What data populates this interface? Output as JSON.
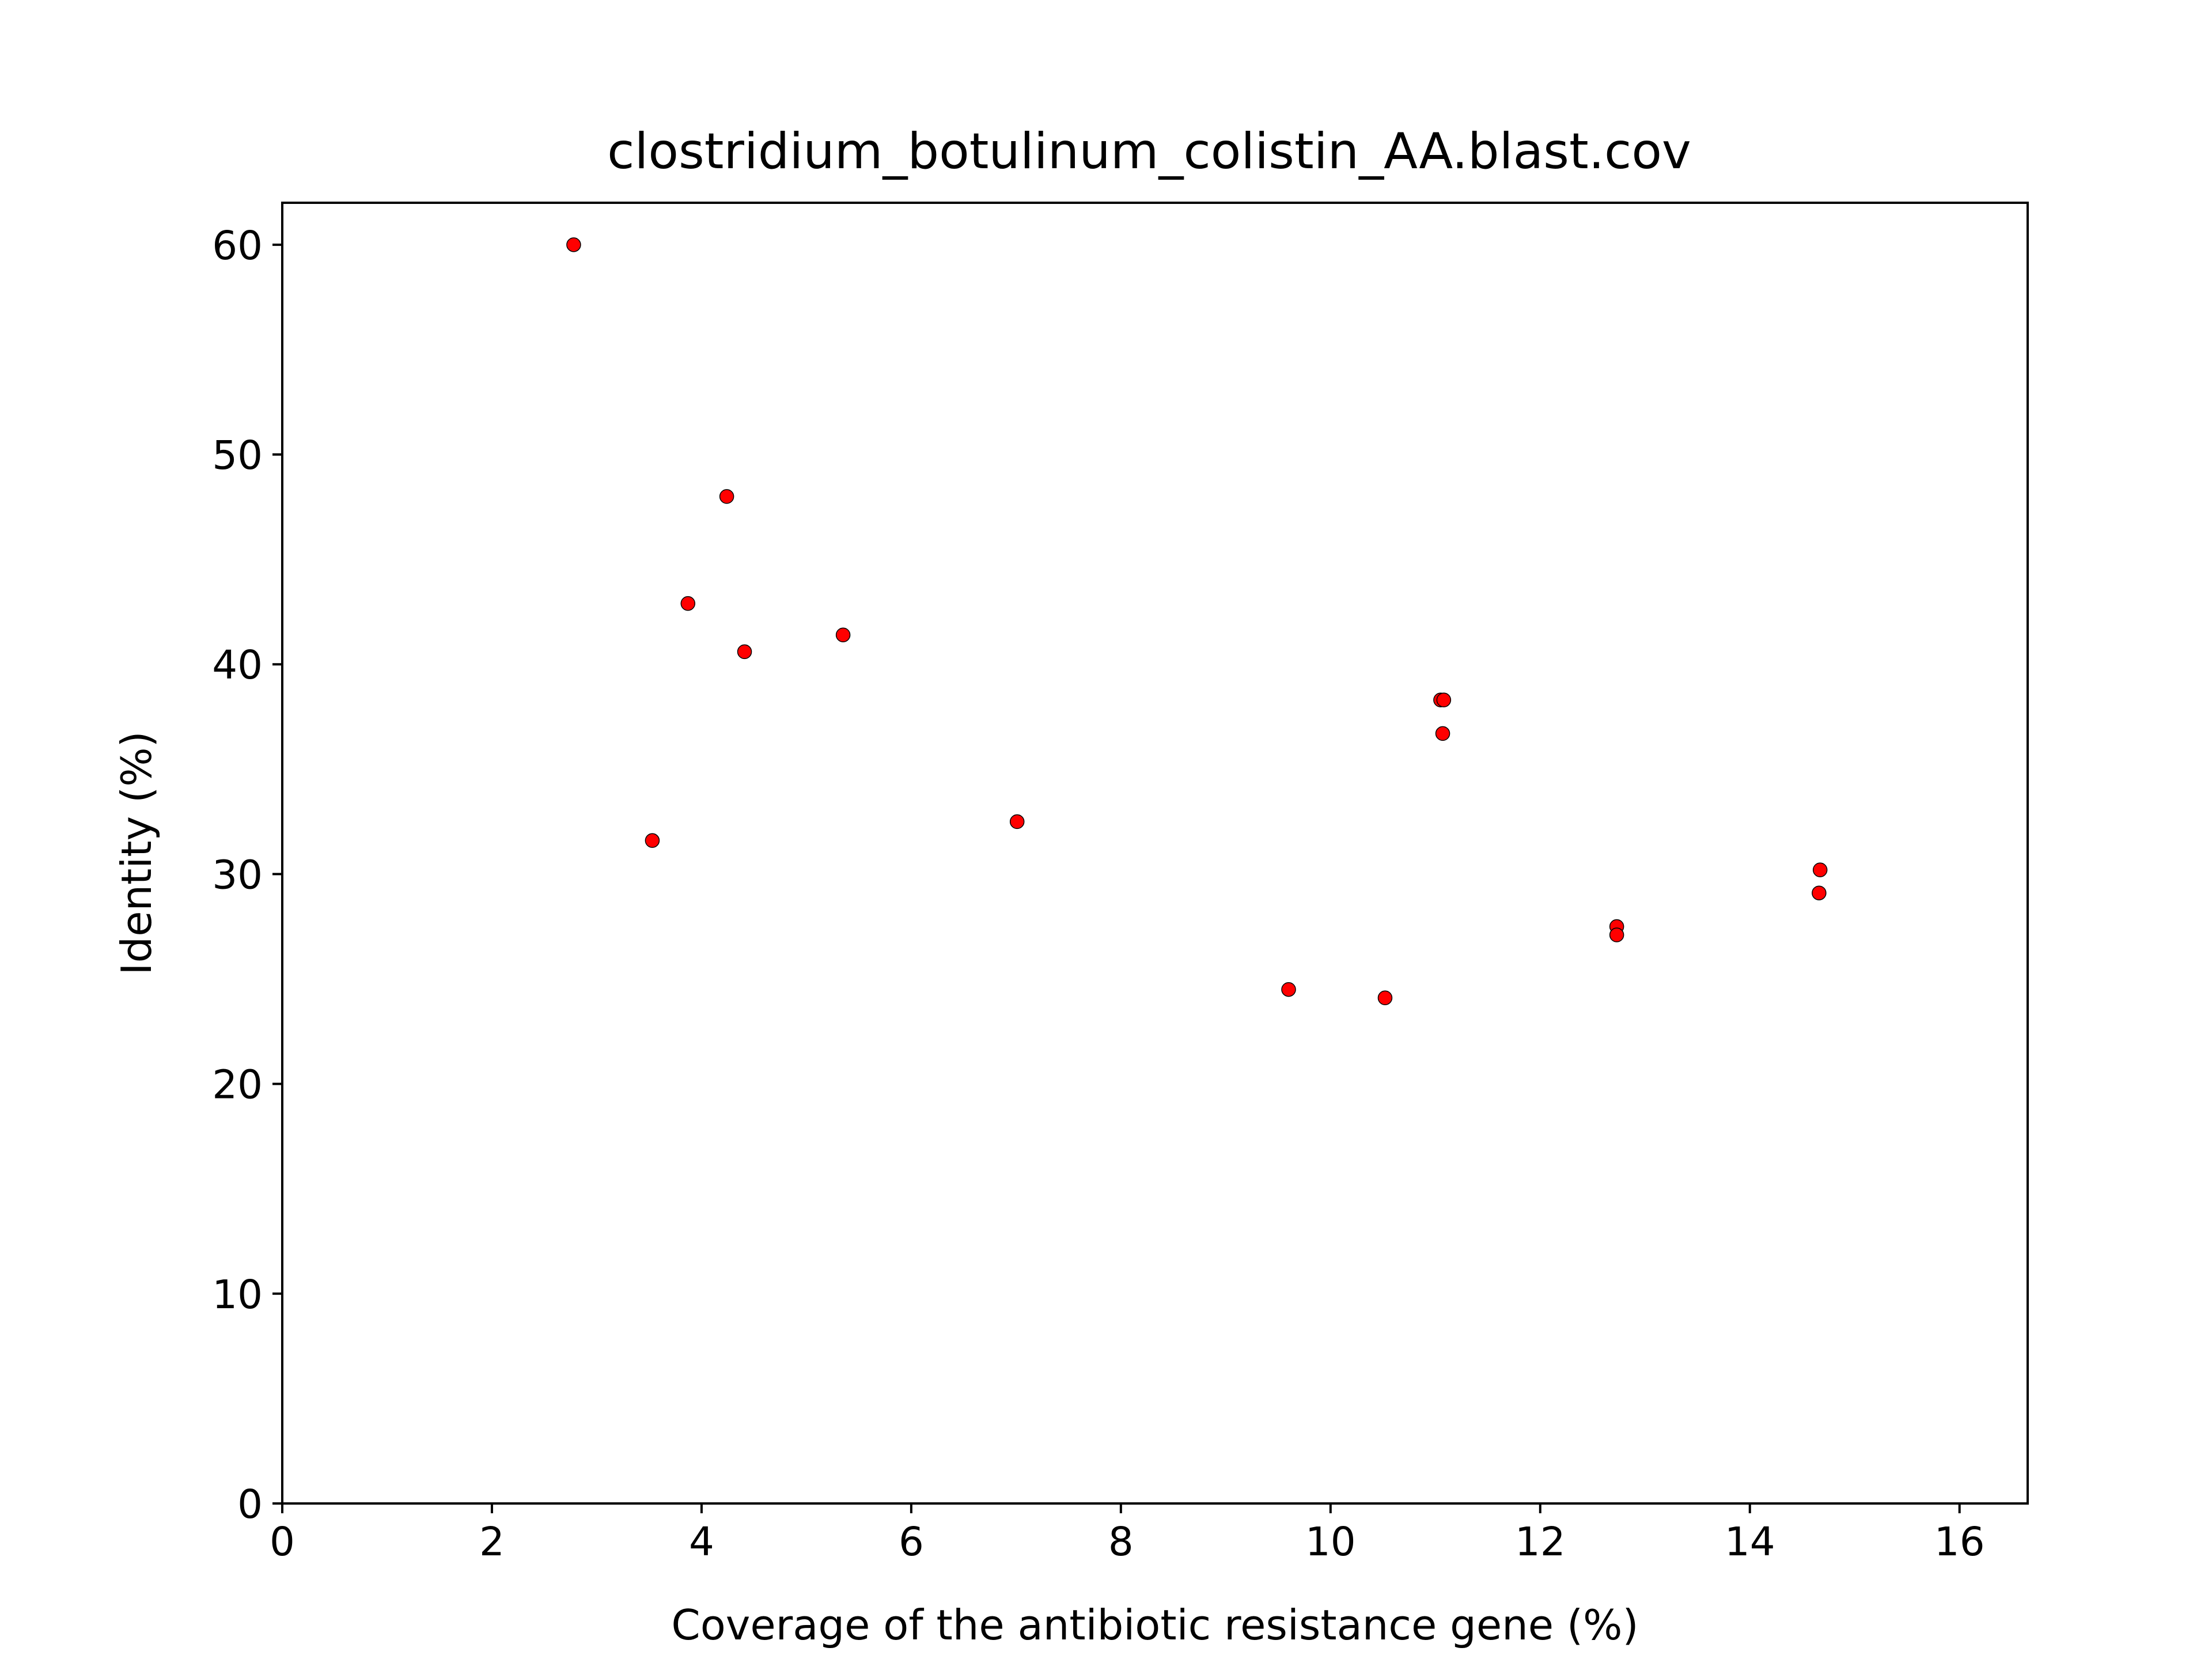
{
  "chart_data": {
    "type": "scatter",
    "title": "clostridium_botulinum_colistin_AA.blast.cov",
    "xlabel": "Coverage of the antibiotic resistance gene (%)",
    "ylabel": "Identity (%)",
    "xlim": [
      0,
      16.65
    ],
    "ylim": [
      0,
      62
    ],
    "xticks": [
      0,
      2,
      4,
      6,
      8,
      10,
      12,
      14,
      16
    ],
    "yticks": [
      0,
      10,
      20,
      30,
      40,
      50,
      60
    ],
    "grid": false,
    "legend": "none",
    "marker_color": "#ff0000",
    "marker_edge_color": "#000000",
    "x": [
      2.78,
      3.53,
      3.87,
      4.24,
      4.41,
      5.35,
      7.01,
      9.6,
      10.52,
      11.05,
      11.08,
      11.07,
      12.73,
      12.73,
      14.67,
      14.66
    ],
    "y": [
      60.0,
      31.6,
      42.9,
      48.0,
      40.6,
      41.4,
      32.5,
      24.5,
      24.1,
      38.3,
      38.3,
      36.7,
      27.5,
      27.1,
      30.2,
      29.1
    ]
  }
}
